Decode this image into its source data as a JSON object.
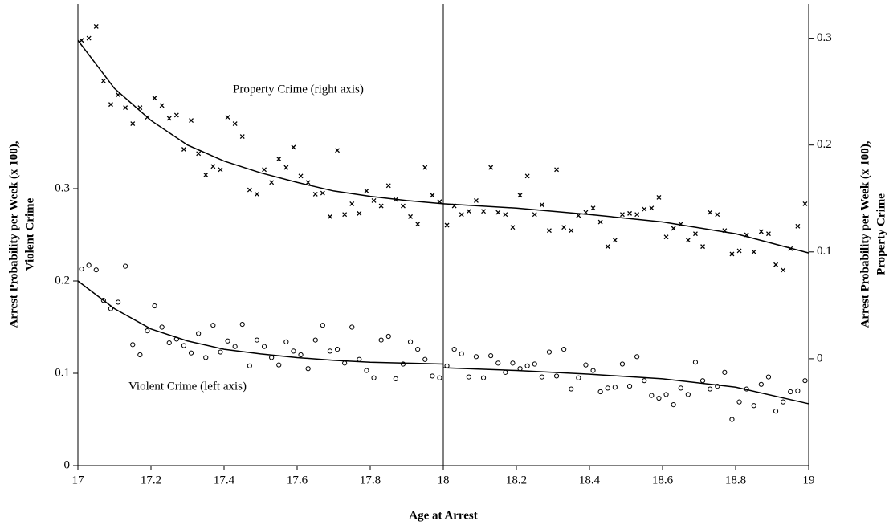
{
  "chart_data": {
    "type": "scatter",
    "xlabel": "Age at Arrest",
    "ylabel": [
      "Arrest Probability per Week (x 100),",
      "Violent Crime"
    ],
    "y2label": [
      "Arrest Probability per Week (x 100),",
      "Property Crime"
    ],
    "annotations": [
      "Property Crime (right axis)",
      "Violent Crime (left axis)"
    ],
    "cutoff_x": 18,
    "xlim": [
      17,
      19
    ],
    "xticks": [
      17,
      17.2,
      17.4,
      17.6,
      17.8,
      18,
      18.2,
      18.4,
      18.6,
      18.8,
      19
    ],
    "ylim": [
      0,
      0.5
    ],
    "yticks": [
      0,
      0.1,
      0.2,
      0.3
    ],
    "y2lim": [
      -0.1,
      0.332
    ],
    "y2ticks": [
      0,
      0.1,
      0.2,
      0.3
    ],
    "series": [
      {
        "marker": "x",
        "axis": "y2",
        "color": "#000000",
        "x": [
          17.01,
          17.03,
          17.05,
          17.07,
          17.09,
          17.11,
          17.13,
          17.15,
          17.17,
          17.19,
          17.21,
          17.23,
          17.25,
          17.27,
          17.29,
          17.31,
          17.33,
          17.35,
          17.37,
          17.39,
          17.41,
          17.43,
          17.45,
          17.47,
          17.49,
          17.51,
          17.53,
          17.55,
          17.57,
          17.59,
          17.61,
          17.63,
          17.65,
          17.67,
          17.69,
          17.71,
          17.73,
          17.75,
          17.77,
          17.79,
          17.81,
          17.83,
          17.85,
          17.87,
          17.89,
          17.91,
          17.93,
          17.95,
          17.97,
          17.99,
          18.01,
          18.03,
          18.05,
          18.07,
          18.09,
          18.11,
          18.13,
          18.15,
          18.17,
          18.19,
          18.21,
          18.23,
          18.25,
          18.27,
          18.29,
          18.31,
          18.33,
          18.35,
          18.37,
          18.39,
          18.41,
          18.43,
          18.45,
          18.47,
          18.49,
          18.51,
          18.53,
          18.55,
          18.57,
          18.59,
          18.61,
          18.63,
          18.65,
          18.67,
          18.69,
          18.71,
          18.73,
          18.75,
          18.77,
          18.79,
          18.81,
          18.83,
          18.85,
          18.87,
          18.89,
          18.91,
          18.93,
          18.95,
          18.97,
          18.99
        ],
        "values": [
          0.298,
          0.3,
          0.311,
          0.26,
          0.238,
          0.247,
          0.235,
          0.22,
          0.235,
          0.226,
          0.244,
          0.237,
          0.225,
          0.228,
          0.196,
          0.223,
          0.192,
          0.172,
          0.18,
          0.177,
          0.226,
          0.22,
          0.208,
          0.158,
          0.154,
          0.177,
          0.165,
          0.187,
          0.179,
          0.198,
          0.171,
          0.165,
          0.154,
          0.155,
          0.133,
          0.195,
          0.135,
          0.145,
          0.136,
          0.157,
          0.148,
          0.143,
          0.162,
          0.149,
          0.143,
          0.133,
          0.126,
          0.179,
          0.153,
          0.147,
          0.125,
          0.143,
          0.135,
          0.138,
          0.148,
          0.138,
          0.179,
          0.137,
          0.135,
          0.123,
          0.153,
          0.171,
          0.135,
          0.144,
          0.12,
          0.177,
          0.123,
          0.12,
          0.134,
          0.137,
          0.141,
          0.128,
          0.105,
          0.111,
          0.135,
          0.136,
          0.135,
          0.14,
          0.141,
          0.151,
          0.114,
          0.122,
          0.126,
          0.111,
          0.117,
          0.105,
          0.137,
          0.135,
          0.12,
          0.098,
          0.101,
          0.116,
          0.1,
          0.119,
          0.117,
          0.088,
          0.083,
          0.103,
          0.124,
          0.145
        ]
      },
      {
        "marker": "o",
        "axis": "y",
        "color": "#000000",
        "x": [
          17.01,
          17.03,
          17.05,
          17.07,
          17.09,
          17.11,
          17.13,
          17.15,
          17.17,
          17.19,
          17.21,
          17.23,
          17.25,
          17.27,
          17.29,
          17.31,
          17.33,
          17.35,
          17.37,
          17.39,
          17.41,
          17.43,
          17.45,
          17.47,
          17.49,
          17.51,
          17.53,
          17.55,
          17.57,
          17.59,
          17.61,
          17.63,
          17.65,
          17.67,
          17.69,
          17.71,
          17.73,
          17.75,
          17.77,
          17.79,
          17.81,
          17.83,
          17.85,
          17.87,
          17.89,
          17.91,
          17.93,
          17.95,
          17.97,
          17.99,
          18.01,
          18.03,
          18.05,
          18.07,
          18.09,
          18.11,
          18.13,
          18.15,
          18.17,
          18.19,
          18.21,
          18.23,
          18.25,
          18.27,
          18.29,
          18.31,
          18.33,
          18.35,
          18.37,
          18.39,
          18.41,
          18.43,
          18.45,
          18.47,
          18.49,
          18.51,
          18.53,
          18.55,
          18.57,
          18.59,
          18.61,
          18.63,
          18.65,
          18.67,
          18.69,
          18.71,
          18.73,
          18.75,
          18.77,
          18.79,
          18.81,
          18.83,
          18.85,
          18.87,
          18.89,
          18.91,
          18.93,
          18.95,
          18.97,
          18.99
        ],
        "values": [
          0.213,
          0.217,
          0.212,
          0.179,
          0.17,
          0.177,
          0.216,
          0.131,
          0.12,
          0.146,
          0.173,
          0.15,
          0.133,
          0.137,
          0.13,
          0.122,
          0.143,
          0.117,
          0.152,
          0.123,
          0.135,
          0.129,
          0.153,
          0.108,
          0.136,
          0.129,
          0.117,
          0.109,
          0.134,
          0.124,
          0.12,
          0.105,
          0.136,
          0.152,
          0.124,
          0.126,
          0.111,
          0.15,
          0.115,
          0.103,
          0.095,
          0.136,
          0.14,
          0.094,
          0.11,
          0.134,
          0.126,
          0.115,
          0.097,
          0.095,
          0.108,
          0.126,
          0.121,
          0.096,
          0.118,
          0.095,
          0.119,
          0.111,
          0.101,
          0.111,
          0.105,
          0.108,
          0.11,
          0.096,
          0.123,
          0.097,
          0.126,
          0.083,
          0.095,
          0.109,
          0.103,
          0.08,
          0.084,
          0.085,
          0.11,
          0.086,
          0.118,
          0.092,
          0.076,
          0.073,
          0.077,
          0.066,
          0.084,
          0.077,
          0.112,
          0.092,
          0.083,
          0.086,
          0.101,
          0.05,
          0.069,
          0.083,
          0.065,
          0.088,
          0.096,
          0.059,
          0.069,
          0.08,
          0.081,
          0.092
        ]
      },
      {
        "marker": "line",
        "axis": "y2",
        "color": "#000000",
        "x": [
          17,
          17.1,
          17.2,
          17.3,
          17.4,
          17.5,
          17.6,
          17.7,
          17.8,
          17.9,
          18
        ],
        "values": [
          0.298,
          0.253,
          0.223,
          0.2,
          0.185,
          0.174,
          0.165,
          0.157,
          0.152,
          0.148,
          0.145
        ]
      },
      {
        "marker": "line",
        "axis": "y2",
        "color": "#000000",
        "x": [
          18,
          18.2,
          18.4,
          18.6,
          18.8,
          19
        ],
        "values": [
          0.145,
          0.141,
          0.135,
          0.128,
          0.117,
          0.099
        ]
      },
      {
        "marker": "line",
        "axis": "y",
        "color": "#000000",
        "x": [
          17,
          17.1,
          17.2,
          17.3,
          17.4,
          17.5,
          17.6,
          17.7,
          17.8,
          17.9,
          18
        ],
        "values": [
          0.2,
          0.17,
          0.148,
          0.135,
          0.126,
          0.121,
          0.117,
          0.114,
          0.112,
          0.111,
          0.11
        ]
      },
      {
        "marker": "line",
        "axis": "y",
        "color": "#000000",
        "x": [
          18,
          18.2,
          18.4,
          18.6,
          18.8,
          19
        ],
        "values": [
          0.106,
          0.103,
          0.099,
          0.094,
          0.085,
          0.067
        ]
      }
    ]
  }
}
